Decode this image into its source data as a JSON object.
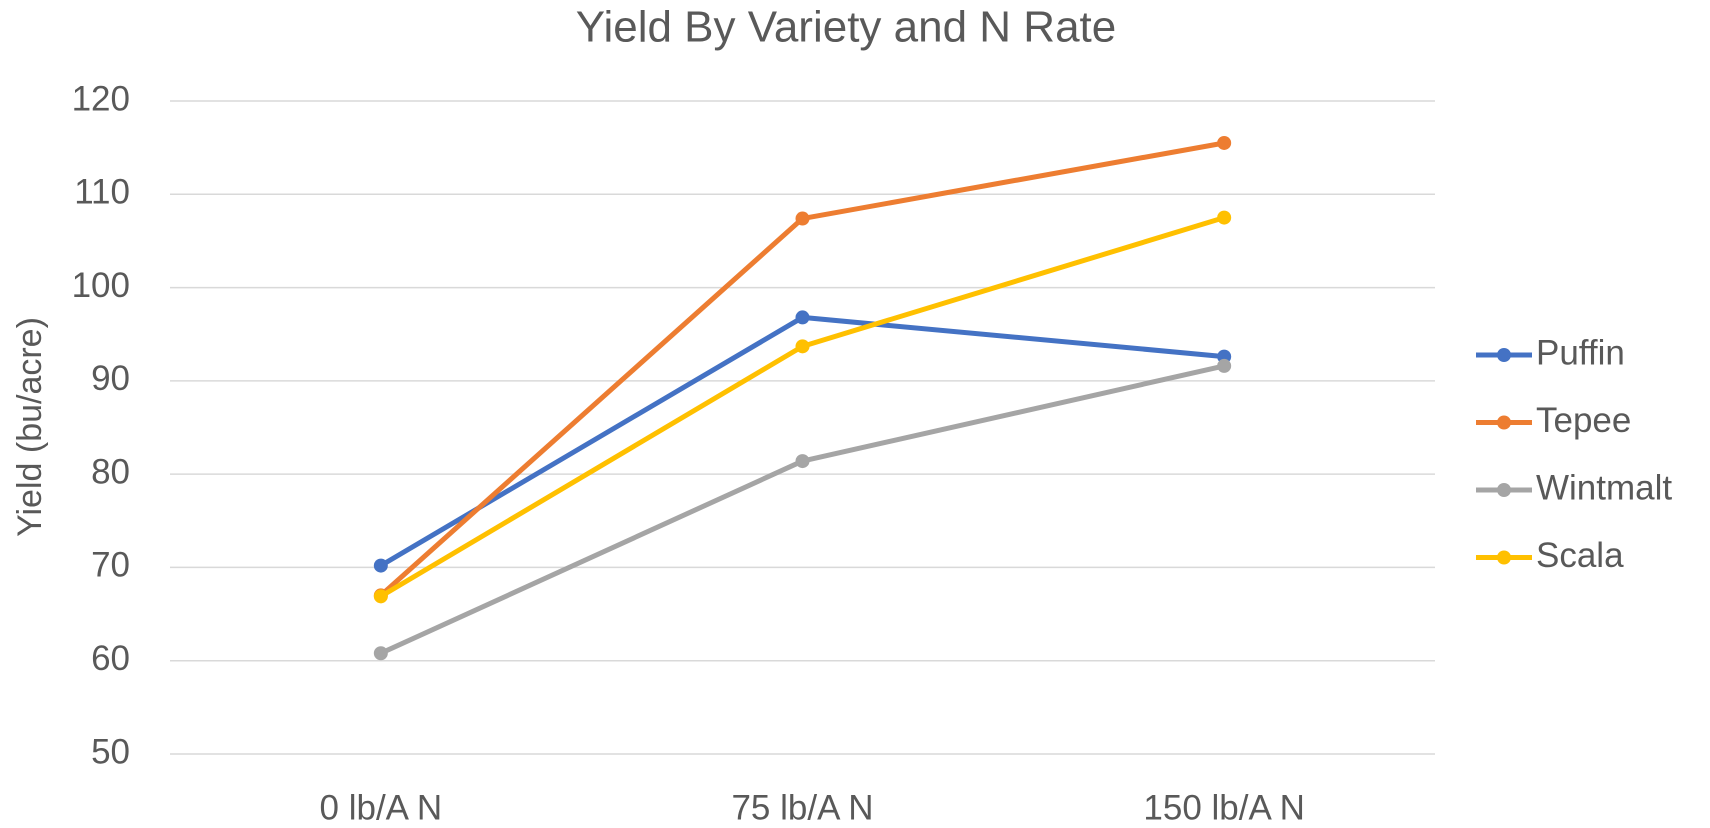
{
  "chart_data": {
    "type": "line",
    "title": "Yield By Variety and N Rate",
    "y_label": "Yield (bu/acre)",
    "categories": [
      "0 lb/A N",
      "75 lb/A N",
      "150 lb/A N"
    ],
    "series": [
      {
        "name": "Puffin",
        "color": "#4472c4",
        "values": [
          70.2,
          96.8,
          92.6
        ]
      },
      {
        "name": "Tepee",
        "color": "#ed7d31",
        "values": [
          67.0,
          107.4,
          115.5
        ]
      },
      {
        "name": "Wintmalt",
        "color": "#a5a5a5",
        "values": [
          60.8,
          81.4,
          91.6
        ]
      },
      {
        "name": "Scala",
        "color": "#ffc000",
        "values": [
          66.9,
          93.7,
          107.5
        ]
      }
    ],
    "ylim": [
      50,
      120
    ],
    "yticks": [
      50,
      60,
      70,
      80,
      90,
      100,
      110,
      120
    ],
    "grid": true,
    "legend": "right"
  }
}
